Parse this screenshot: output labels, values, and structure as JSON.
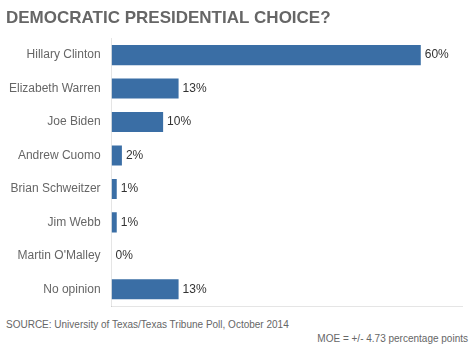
{
  "chart_data": {
    "type": "bar",
    "orientation": "horizontal",
    "title": "DEMOCRATIC PRESIDENTIAL CHOICE?",
    "categories": [
      "Hillary Clinton",
      "Elizabeth Warren",
      "Joe Biden",
      "Andrew Cuomo",
      "Brian Schweitzer",
      "Jim Webb",
      "Martin O'Malley",
      "No opinion"
    ],
    "values": [
      60,
      13,
      10,
      2,
      1,
      1,
      0,
      13
    ],
    "value_labels": [
      "60%",
      "13%",
      "10%",
      "2%",
      "1%",
      "1%",
      "0%",
      "13%"
    ],
    "data_labels": true,
    "color": "#3a6ea5",
    "xlim": [
      0,
      68
    ],
    "grid": false,
    "tick_labels": "y",
    "annotations": [
      "SOURCE: University of Texas/Texas Tribune Poll, October 2014",
      "MOE = +/- 4.73 percentage points"
    ]
  }
}
